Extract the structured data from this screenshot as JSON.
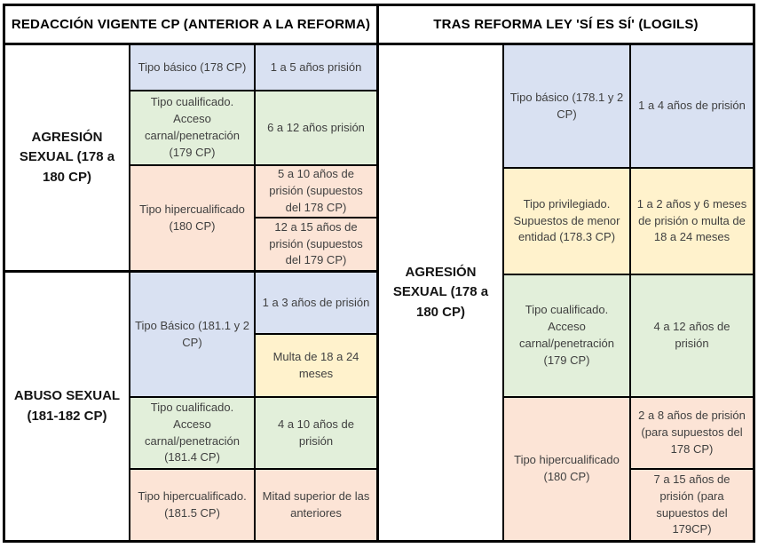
{
  "colors": {
    "border": "#000000",
    "lavender": "#D9E1F2",
    "green": "#E2EFDA",
    "peach": "#FCE4D6",
    "yellow": "#FFF2CC",
    "cell_text": "#404040",
    "label_text": "#141414"
  },
  "left": {
    "header": "REDACCIÓN VIGENTE CP (ANTERIOR A LA REFORMA)",
    "agresion": {
      "label": "AGRESIÓN SEXUAL (178 a 180 CP)",
      "basico": {
        "type": "Tipo básico (178 CP)",
        "pen": "1 a 5 años prisión"
      },
      "cualificado": {
        "type": "Tipo cualificado. Acceso carnal/penetración (179 CP)",
        "pen": "6 a 12 años prisión"
      },
      "hiper": {
        "type": "Tipo hipercualificado (180 CP)",
        "pen1": "5 a 10 años de prisión (supuestos del 178 CP)",
        "pen2": "12 a 15 años de prisión (supuestos del 179 CP)"
      }
    },
    "abuso": {
      "label": "ABUSO SEXUAL (181-182 CP)",
      "basico": {
        "type": "Tipo Básico (181.1 y 2 CP)",
        "pen1": "1 a 3 años de prisión",
        "pen2": "Multa de 18 a 24 meses"
      },
      "cualificado": {
        "type": "Tipo cualificado. Acceso carnal/penetración (181.4 CP)",
        "pen": "4 a 10 años de prisión"
      },
      "hiper": {
        "type": "Tipo hipercualificado. (181.5 CP)",
        "pen": "Mitad superior de las anteriores"
      }
    }
  },
  "right": {
    "header": "TRAS REFORMA LEY 'SÍ ES SÍ' (LOGILS)",
    "agresion": {
      "label": "AGRESIÓN SEXUAL (178 a 180 CP)",
      "basico": {
        "type": "Tipo básico (178.1 y 2 CP)",
        "pen": "1 a 4 años de prisión"
      },
      "privilegiado": {
        "type": "Tipo privilegiado. Supuestos de menor entidad (178.3 CP)",
        "pen": "1 a 2 años y 6 meses de prisión o multa de 18 a 24 meses"
      },
      "cualificado": {
        "type": "Tipo cualificado. Acceso carnal/penetración (179 CP)",
        "pen": "4 a 12 años de prisión"
      },
      "hiper": {
        "type": "Tipo hipercualificado (180 CP)",
        "pen1": "2 a 8 años de prisión (para supuestos del 178 CP)",
        "pen2": "7 a 15 años de prisión (para supuestos del 179CP)"
      }
    }
  }
}
